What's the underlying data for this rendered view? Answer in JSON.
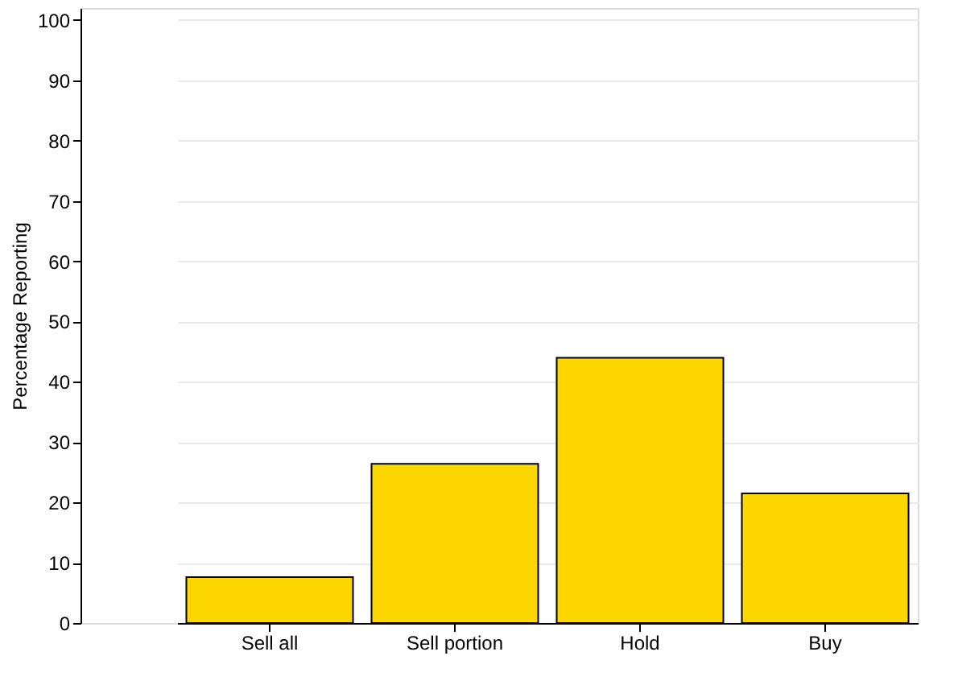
{
  "chart_data": {
    "type": "bar",
    "ylabel": "Percentage Reporting",
    "categories": [
      "Sell all",
      "Sell portion",
      "Hold",
      "Buy"
    ],
    "values": [
      7.6,
      26.4,
      44.0,
      21.5
    ],
    "color": "#ffd700",
    "ylim": [
      0,
      102
    ],
    "yticks": [
      0,
      10,
      20,
      30,
      40,
      50,
      60,
      70,
      80,
      90,
      100
    ],
    "grid": "y"
  }
}
